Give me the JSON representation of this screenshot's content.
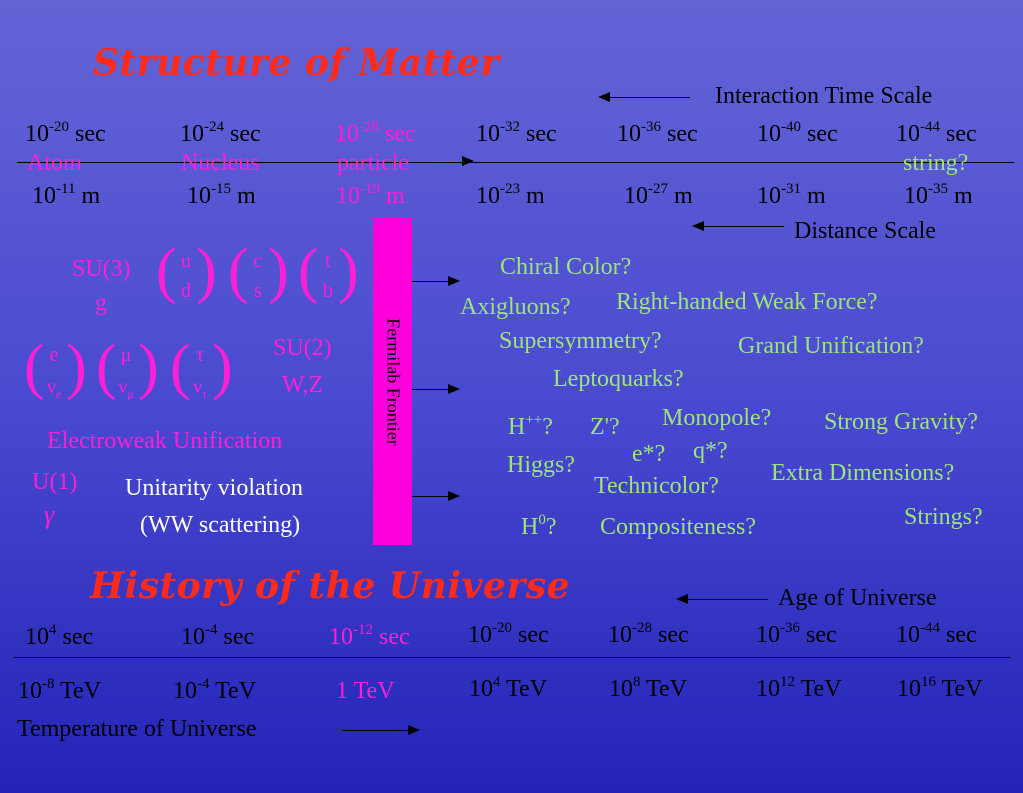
{
  "titles": {
    "structure": "Structure of Matter",
    "history": "History of the Universe"
  },
  "labels": {
    "interaction_time_scale": "Interaction Time Scale",
    "distance_scale": "Distance Scale",
    "age_of_universe": "Age of Universe",
    "temperature_of_universe": "Temperature of Universe",
    "fermilab_frontier": "Fermilab Frontier"
  },
  "time_scale": [
    {
      "base": "10",
      "exp": "-20",
      "unit": " sec"
    },
    {
      "base": "10",
      "exp": "-24",
      "unit": " sec"
    },
    {
      "base": "10",
      "exp": "-28",
      "unit": " sec"
    },
    {
      "base": "10",
      "exp": "-32",
      "unit": " sec"
    },
    {
      "base": "10",
      "exp": "-36",
      "unit": " sec"
    },
    {
      "base": "10",
      "exp": "-40",
      "unit": " sec"
    },
    {
      "base": "10",
      "exp": "-44",
      "unit": " sec"
    }
  ],
  "objects": [
    "Atom",
    "Nucleus",
    "particle",
    "string?"
  ],
  "distance_scale": [
    {
      "base": "10",
      "exp": "-11",
      "unit": " m"
    },
    {
      "base": "10",
      "exp": "-15",
      "unit": " m"
    },
    {
      "base": "10",
      "exp": "-19",
      "unit": " m"
    },
    {
      "base": "10",
      "exp": "-23",
      "unit": " m"
    },
    {
      "base": "10",
      "exp": "-27",
      "unit": " m"
    },
    {
      "base": "10",
      "exp": "-31",
      "unit": " m"
    },
    {
      "base": "10",
      "exp": "-35",
      "unit": " m"
    }
  ],
  "standard_model": {
    "su3": "SU(3)",
    "g": "g",
    "quarks": [
      [
        "u",
        "d"
      ],
      [
        "c",
        "s"
      ],
      [
        "t",
        "b"
      ]
    ],
    "leptons": [
      [
        "e",
        "ν",
        "e"
      ],
      [
        "μ",
        "ν",
        "μ"
      ],
      [
        "τ",
        "ν",
        "τ"
      ]
    ],
    "su2": "SU(2)",
    "wz": "W,Z",
    "electroweak": "Electroweak Unification",
    "u1": "U(1)",
    "gamma": "γ",
    "unitarity_1": "Unitarity violation",
    "unitarity_2": "(WW scattering)"
  },
  "speculations": {
    "chiral_color": "Chiral Color?",
    "axigluons": "Axigluons?",
    "right_handed": "Right-handed Weak Force?",
    "supersymmetry": "Supersymmetry?",
    "grand_unification": "Grand Unification?",
    "leptoquarks": "Leptoquarks?",
    "hpp_base": "H",
    "hpp_sup": "++",
    "hpp_q": "?",
    "zprime": "Z'?",
    "monopole": "Monopole?",
    "strong_gravity": "Strong Gravity?",
    "higgs": "Higgs?",
    "estar": "e*?",
    "qstar": "q*?",
    "technicolor": "Technicolor?",
    "extra_dimensions": "Extra Dimensions?",
    "strings": "Strings?",
    "h0_base": "H",
    "h0_sup": "0",
    "h0_q": "?",
    "compositeness": "Compositeness?"
  },
  "age_scale": [
    {
      "base": "10",
      "exp": "4",
      "unit": " sec"
    },
    {
      "base": "10",
      "exp": "-4",
      "unit": " sec"
    },
    {
      "base": "10",
      "exp": "-12",
      "unit": " sec"
    },
    {
      "base": "10",
      "exp": "-20",
      "unit": " sec"
    },
    {
      "base": "10",
      "exp": "-28",
      "unit": " sec"
    },
    {
      "base": "10",
      "exp": "-36",
      "unit": " sec"
    },
    {
      "base": "10",
      "exp": "-44",
      "unit": " sec"
    }
  ],
  "temperature_scale": [
    {
      "base": "10",
      "exp": "-8",
      "unit": " TeV"
    },
    {
      "base": "10",
      "exp": "-4",
      "unit": " TeV"
    },
    {
      "text": "1 TeV"
    },
    {
      "base": "10",
      "exp": "4",
      "unit": " TeV"
    },
    {
      "base": "10",
      "exp": "8",
      "unit": " TeV"
    },
    {
      "base": "10",
      "exp": "12",
      "unit": " TeV"
    },
    {
      "base": "10",
      "exp": "16",
      "unit": " TeV"
    }
  ],
  "colors": {
    "title": "#ff2a1a",
    "magenta": "#ff1fd6",
    "green": "#9de47a",
    "frontier": "#ff00dd"
  }
}
